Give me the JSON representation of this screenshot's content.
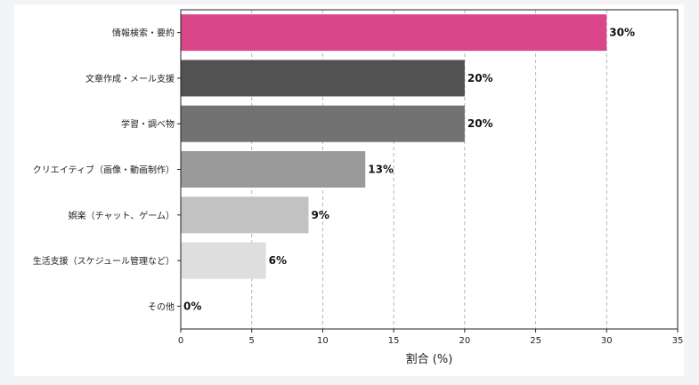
{
  "chart_data": {
    "type": "bar",
    "orientation": "horizontal",
    "categories": [
      "情報検索・要約",
      "文章作成・メール支援",
      "学習・調べ物",
      "クリエイティブ（画像・動画制作）",
      "娯楽（チャット、ゲーム）",
      "生活支援（スケジュール管理など）",
      "その他"
    ],
    "values": [
      30,
      20,
      20,
      13,
      9,
      6,
      0
    ],
    "value_labels": [
      "30%",
      "20%",
      "20%",
      "13%",
      "9%",
      "6%",
      "0%"
    ],
    "colors": [
      "#d9468a",
      "#525252",
      "#727272",
      "#9a9a9a",
      "#c2c2c2",
      "#dedede",
      "#f2f2f2"
    ],
    "xlabel": "割合 (%)",
    "ylabel": "",
    "title": "",
    "xlim": [
      0,
      35
    ],
    "xticks": [
      0,
      5,
      10,
      15,
      20,
      25,
      30,
      35
    ],
    "grid": "x-dashed",
    "legend": "none"
  }
}
